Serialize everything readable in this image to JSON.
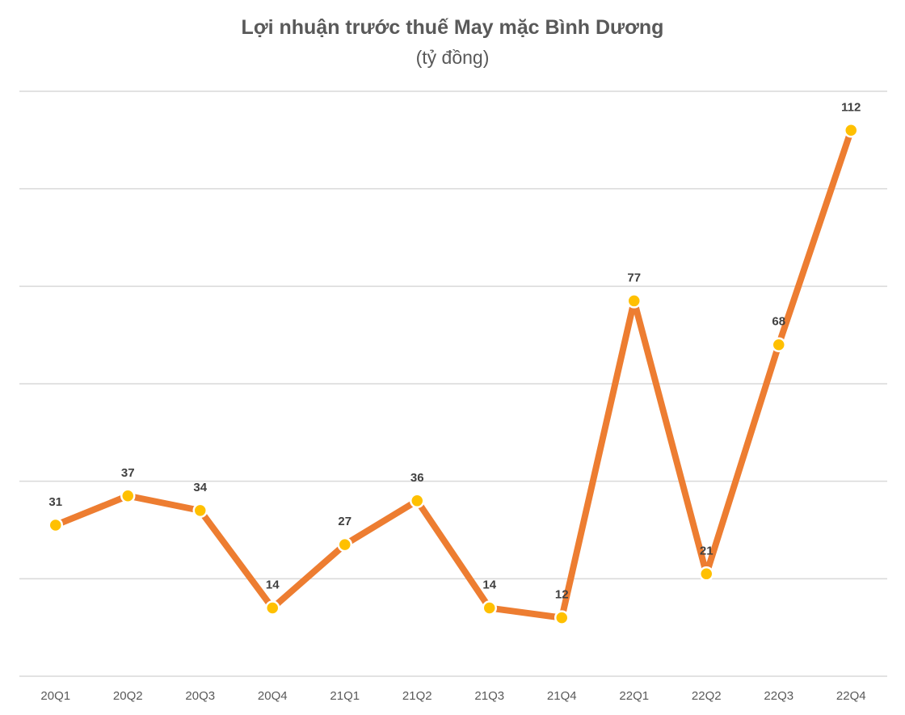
{
  "colors": {
    "line": "#ED7D31",
    "marker": "#FFC000",
    "grid": "#D9D9D9"
  },
  "chart_data": {
    "type": "line",
    "title": "Lợi nhuận trước thuế May mặc Bình Dương",
    "subtitle": "(tỷ đồng)",
    "xlabel": "",
    "ylabel": "",
    "ylim": [
      0,
      120
    ],
    "grid": true,
    "categories": [
      "20Q1",
      "20Q2",
      "20Q3",
      "20Q4",
      "21Q1",
      "21Q2",
      "21Q3",
      "21Q4",
      "22Q1",
      "22Q2",
      "22Q3",
      "22Q4"
    ],
    "series": [
      {
        "name": "Lợi nhuận trước thuế",
        "values": [
          31,
          37,
          34,
          14,
          27,
          36,
          14,
          12,
          77,
          21,
          68,
          112
        ],
        "labels": [
          "31",
          "37",
          "34",
          "14",
          "27",
          "36",
          "14",
          "12",
          "77",
          "21",
          "68",
          "112"
        ]
      }
    ]
  }
}
